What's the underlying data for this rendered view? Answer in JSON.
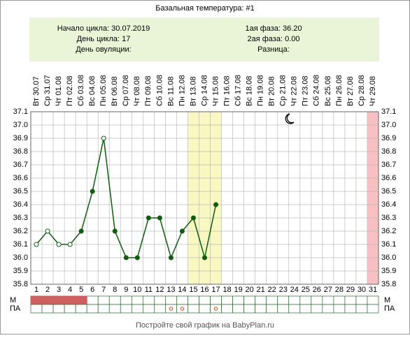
{
  "chart_data": {
    "type": "line",
    "title": "Базальная температура: #1",
    "info": {
      "left": [
        "Начало цикла: 30.07.2019",
        "День цикла: 17",
        "День овуляции:"
      ],
      "right": [
        "1ая фаза: 36.20",
        "2ая фаза: 0.00",
        "Разница:"
      ]
    },
    "x": [
      1,
      2,
      3,
      4,
      5,
      6,
      7,
      8,
      9,
      10,
      11,
      12,
      13,
      14,
      15,
      16,
      17,
      18,
      19,
      20,
      21,
      22,
      23,
      24,
      25,
      26,
      27,
      28,
      29,
      30,
      31
    ],
    "categories": [
      "Вт 30.07",
      "Ср 31.07",
      "Чт 01.08",
      "Пт 02.08",
      "Сб 03.08",
      "Вс 04.08",
      "Пн 05.08",
      "Вт 06.08",
      "Ср 07.08",
      "Чт 08.08",
      "Пт 09.08",
      "Сб 10.08",
      "Вс 11.08",
      "Пн 12.08",
      "Вт 13.08",
      "Ср 14.08",
      "Чт 15.08",
      "Пт 16.08",
      "Сб 17.08",
      "Вс 18.08",
      "Пн 19.08",
      "Вт 20.08",
      "Ср 21.08",
      "Чт 22.08",
      "Пт 23.08",
      "Сб 24.08",
      "Вс 25.08",
      "Пн 26.08",
      "Вт 27.08",
      "Ср 28.08",
      "Чт 29.08"
    ],
    "series": [
      {
        "color": "#0d5e0d",
        "values": [
          36.1,
          36.2,
          36.1,
          36.1,
          36.2,
          36.5,
          36.9,
          36.2,
          36.0,
          36.0,
          36.3,
          36.3,
          36.0,
          36.2,
          36.3,
          36.0,
          36.4,
          null,
          null,
          null,
          null,
          null,
          null,
          null,
          null,
          null,
          null,
          null,
          null,
          null,
          null
        ],
        "hollow_days": [
          1,
          2,
          3,
          4,
          7
        ]
      }
    ],
    "ylim": [
      35.8,
      37.1
    ],
    "yticks": [
      35.8,
      35.9,
      {
        "value": 36,
        "label": "36.0"
      },
      36.1,
      36.2,
      36.3,
      36.4,
      36.5,
      36.6,
      36.7,
      36.8,
      36.9,
      {
        "value": 37,
        "label": "37.0"
      },
      37.1
    ],
    "grid": true,
    "highlight_days": [
      15,
      16,
      17
    ],
    "highlight_color": "#f8f8c0",
    "pink_days": [
      31
    ],
    "pink_color": "#f8c0c0",
    "rows": [
      {
        "label": "М",
        "days": [
          1,
          2,
          3,
          4,
          5
        ],
        "color": "#d06060"
      },
      {
        "label": "ПА",
        "days": [
          13,
          14,
          17
        ],
        "color": "#e05030"
      }
    ],
    "footer": "Постройте свой график на BabyPlan.ru"
  }
}
